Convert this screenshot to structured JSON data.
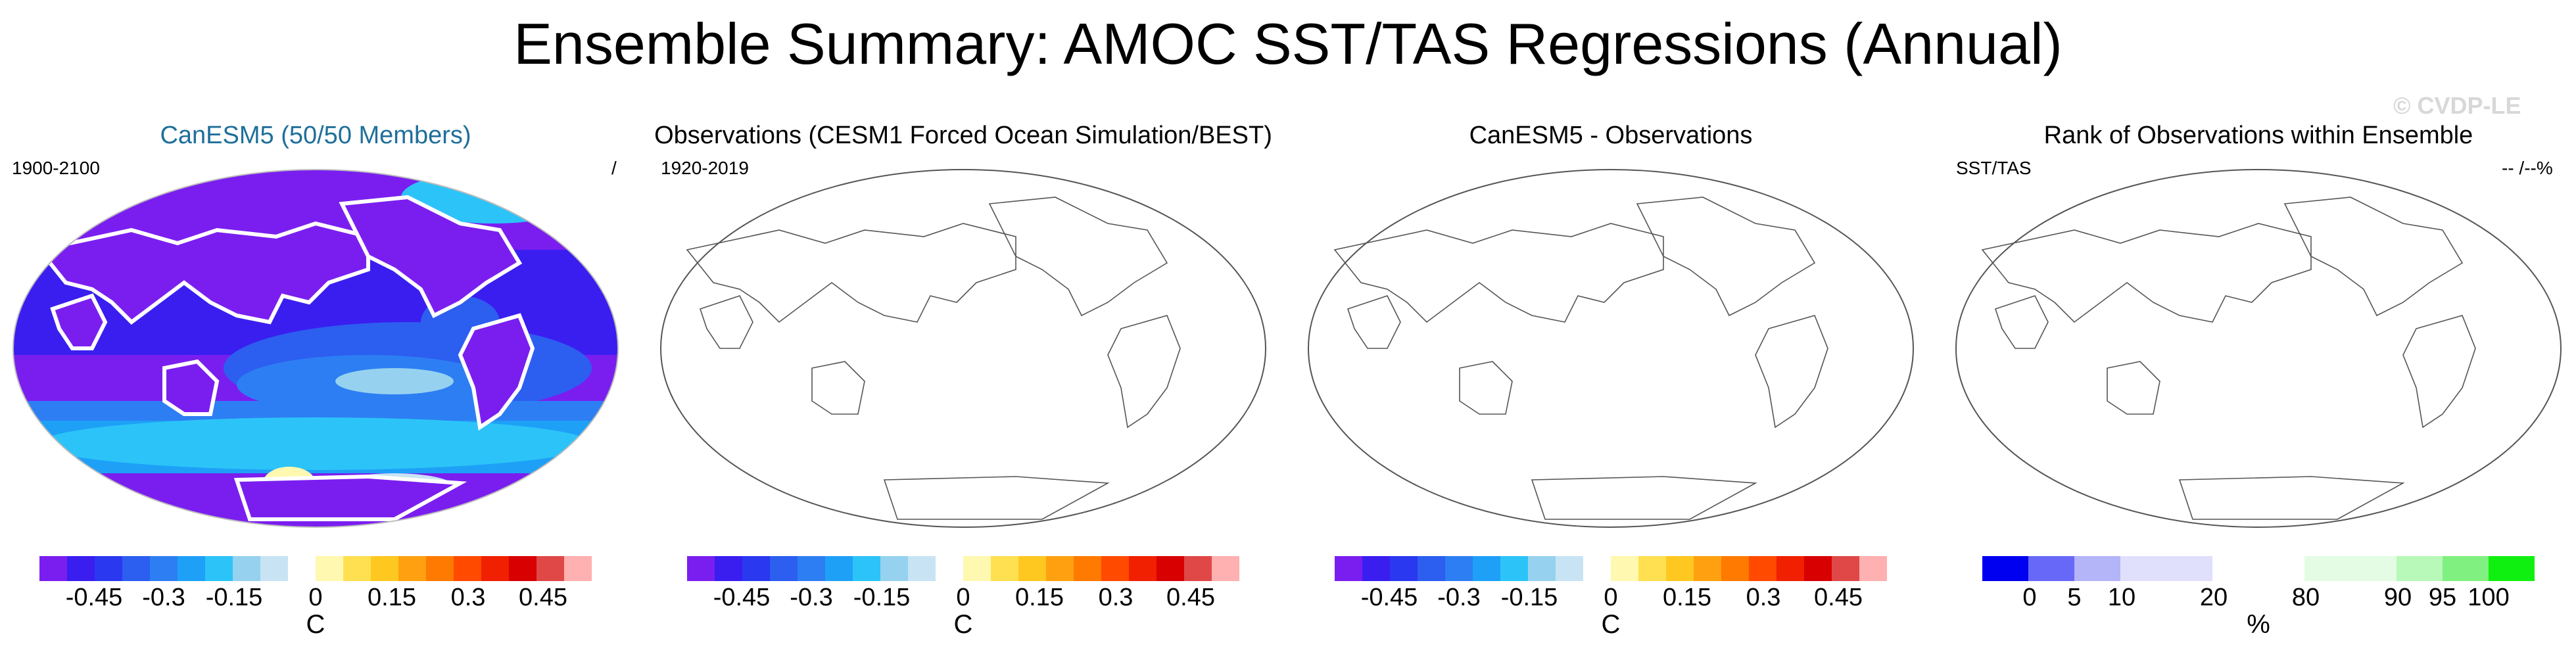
{
  "title": "Ensemble Summary: AMOC SST/TAS Regressions (Annual)",
  "watermark": "© CVDP-LE",
  "colors": {
    "diverging": [
      "#7a1ef0",
      "#3a1ef0",
      "#2a38f0",
      "#2c5ef0",
      "#2d7ef3",
      "#1ea0f7",
      "#2cc4f8",
      "#96d2ef",
      "#c8e4f4",
      "#fff8b0",
      "#ffe050",
      "#ffc820",
      "#ffa010",
      "#ff7a00",
      "#ff4a00",
      "#f02000",
      "#d80000",
      "#b00000",
      "#e04848",
      "#ffb0b0"
    ],
    "rank": [
      "#0000f0",
      "#6868f8",
      "#b4b4f8",
      "#e0e0fc",
      "#ffffff",
      "#e4fce4",
      "#b8f8b8",
      "#80f080",
      "#10f010"
    ]
  },
  "panels": [
    {
      "title": "CanESM5 (50/50 Members)",
      "left_label": "1900-2100",
      "right_label": "/",
      "ticks": [
        "-0.45",
        "-0.3",
        "-0.15",
        "0",
        "0.15",
        "0.3",
        "0.45"
      ],
      "unit": "C"
    },
    {
      "title": "Observations (CESM1 Forced Ocean Simulation/BEST)",
      "left_label": "1920-2019",
      "right_label": "",
      "ticks": [
        "-0.45",
        "-0.3",
        "-0.15",
        "0",
        "0.15",
        "0.3",
        "0.45"
      ],
      "unit": "C"
    },
    {
      "title": "CanESM5 - Observations",
      "left_label": "",
      "right_label": "",
      "ticks": [
        "-0.45",
        "-0.3",
        "-0.15",
        "0",
        "0.15",
        "0.3",
        "0.45"
      ],
      "unit": "C"
    },
    {
      "title": "Rank of Observations within Ensemble",
      "left_label": "SST/TAS",
      "right_label": "-- /--%",
      "ticks": [
        "0",
        "5",
        "10",
        "20",
        "80",
        "90",
        "95",
        "100"
      ],
      "unit": "%"
    }
  ],
  "chart_data": [
    {
      "type": "heatmap",
      "title": "CanESM5 (50/50 Members)",
      "period": "1900-2100",
      "colorbar_levels": [
        -0.5,
        -0.45,
        -0.4,
        -0.35,
        -0.3,
        -0.25,
        -0.2,
        -0.15,
        -0.1,
        -0.05,
        0,
        0.05,
        0.1,
        0.15,
        0.2,
        0.25,
        0.3,
        0.35,
        0.4,
        0.45,
        0.5
      ],
      "colorbar_ticks": [
        -0.45,
        -0.3,
        -0.15,
        0,
        0.15,
        0.3,
        0.45
      ],
      "unit": "C"
    },
    {
      "type": "heatmap",
      "title": "Observations (CESM1 Forced Ocean Simulation/BEST)",
      "period": "1920-2019",
      "colorbar_ticks": [
        -0.45,
        -0.3,
        -0.15,
        0,
        0.15,
        0.3,
        0.45
      ],
      "unit": "C"
    },
    {
      "type": "heatmap",
      "title": "CanESM5 - Observations",
      "colorbar_ticks": [
        -0.45,
        -0.3,
        -0.15,
        0,
        0.15,
        0.3,
        0.45
      ],
      "unit": "C"
    },
    {
      "type": "heatmap",
      "title": "Rank of Observations within Ensemble",
      "colorbar_ticks": [
        0,
        5,
        10,
        20,
        80,
        90,
        95,
        100
      ],
      "unit": "%"
    }
  ]
}
